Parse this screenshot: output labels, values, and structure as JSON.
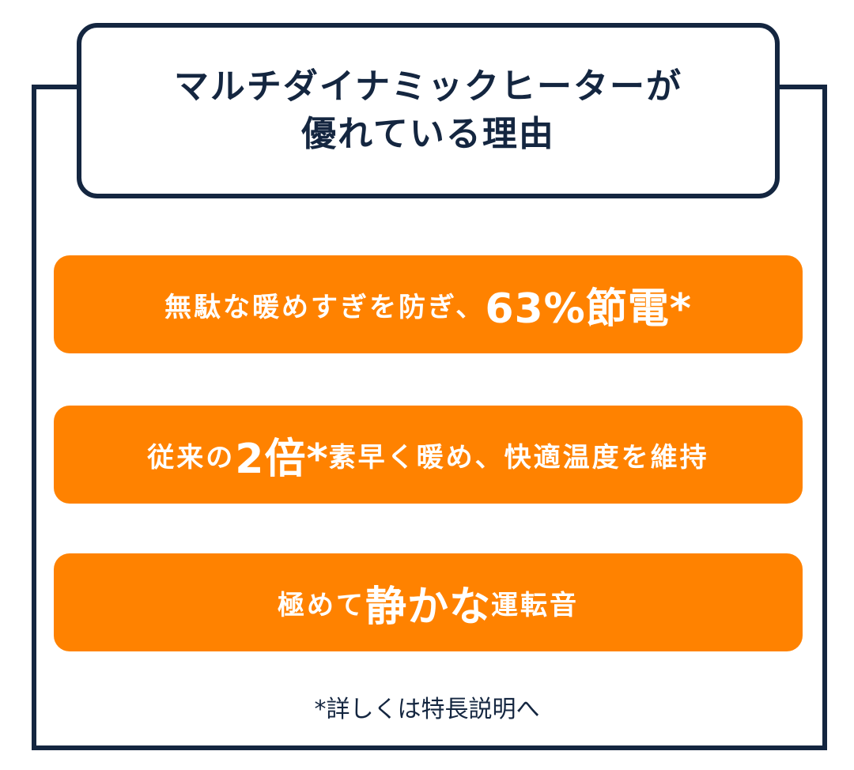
{
  "title": {
    "line1": "マルチダイナミックヒーターが",
    "line2": "優れている理由"
  },
  "reasons": [
    {
      "pre": "無駄な暖めすぎを防ぎ、",
      "em": "63%節電*",
      "post": ""
    },
    {
      "pre": "従来の",
      "em": "2倍*",
      "post": "素早く暖め、快適温度を維持"
    },
    {
      "pre": "極めて",
      "em": "静かな",
      "post": "運転音"
    }
  ],
  "footnote": "*詳しくは特長説明へ",
  "colors": {
    "navy": "#142640",
    "orange": "#FF8200"
  }
}
